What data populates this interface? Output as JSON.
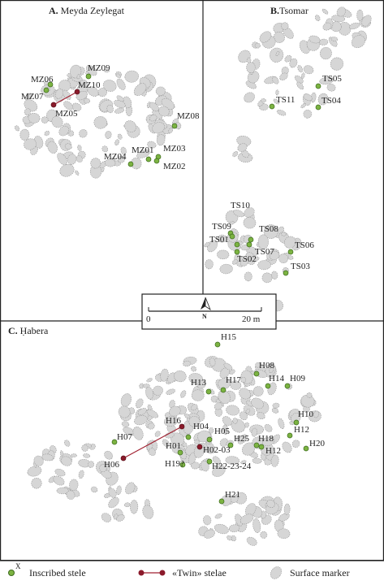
{
  "panels": [
    {
      "letter": "A.",
      "name": "Meyda Zeylegat",
      "stelae": [
        "MZ09",
        "MZ06",
        "MZ10",
        "MZ07",
        "MZ05",
        "MZ08",
        "MZ01",
        "MZ03",
        "MZ04",
        "MZ02"
      ]
    },
    {
      "letter": "B.",
      "name": "Tsomar",
      "stelae": [
        "TS05",
        "TS11",
        "TS04",
        "TS10",
        "TS09",
        "TS08",
        "TS01",
        "TS07",
        "TS02",
        "TS06",
        "TS03"
      ]
    },
    {
      "letter": "C.",
      "name": "Ḥabera",
      "stelae": [
        "H15",
        "H08",
        "H14",
        "H09",
        "H13",
        "H17",
        "H10",
        "H16",
        "H12",
        "H04",
        "H05",
        "H07",
        "H18",
        "H25",
        "H20",
        "H01",
        "H02-03",
        "H12",
        "H06",
        "H19?",
        "H22-23-24",
        "H21"
      ]
    }
  ],
  "scale": {
    "start": "0",
    "end": "20 m",
    "north": "N"
  },
  "legend": {
    "inscribed_marker": "X",
    "inscribed": "Inscribed stele",
    "twin": "«Twin» stelae",
    "surface": "Surface marker"
  }
}
